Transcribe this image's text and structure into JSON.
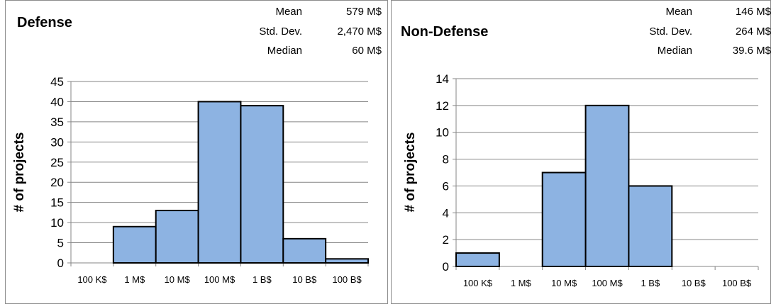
{
  "charts": [
    {
      "title": "Defense",
      "stats": [
        {
          "label": "Mean",
          "value": "579 M$"
        },
        {
          "label": "Std. Dev.",
          "value": "2,470 M$"
        },
        {
          "label": "Median",
          "value": "60 M$"
        }
      ]
    },
    {
      "title": "Non-Defense",
      "stats": [
        {
          "label": "Mean",
          "value": "146 M$"
        },
        {
          "label": "Std. Dev.",
          "value": "264 M$"
        },
        {
          "label": "Median",
          "value": "39.6 M$"
        }
      ]
    }
  ],
  "chart_data": [
    {
      "type": "bar",
      "title": "Defense",
      "ylabel": "# of projects",
      "xlabel": "",
      "boundaries": [
        "100 K$",
        "1 M$",
        "10 M$",
        "100 M$",
        "1 B$",
        "10 B$",
        "100 B$"
      ],
      "values": [
        0,
        9,
        13,
        40,
        39,
        6,
        1
      ],
      "ylim": [
        0,
        45
      ],
      "yticks": [
        0,
        5,
        10,
        15,
        20,
        25,
        30,
        35,
        40,
        45
      ],
      "grid": true,
      "bar_color": "#8db3e2"
    },
    {
      "type": "bar",
      "title": "Non-Defense",
      "ylabel": "# of projects",
      "xlabel": "",
      "boundaries": [
        "100 K$",
        "1 M$",
        "10 M$",
        "100 M$",
        "1 B$",
        "10 B$",
        "100 B$"
      ],
      "values": [
        1,
        0,
        7,
        12,
        6,
        0,
        0
      ],
      "ylim": [
        0,
        14
      ],
      "yticks": [
        0,
        2,
        4,
        6,
        8,
        10,
        12,
        14
      ],
      "grid": true,
      "bar_color": "#8db3e2"
    }
  ]
}
